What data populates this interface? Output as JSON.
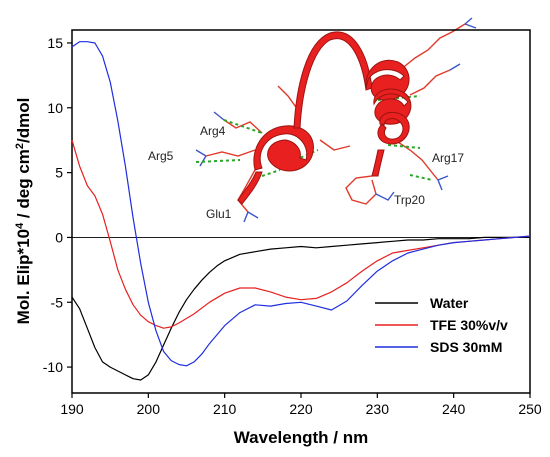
{
  "chart_data": {
    "type": "line",
    "xlabel": "Wavelength / nm",
    "ylabel_prefix": "Mol. Elip*10",
    "ylabel_exp": "4",
    "ylabel_mid": " / deg cm",
    "ylabel_exp2": "2",
    "ylabel_suffix": "/dmol",
    "xlim": [
      190,
      250
    ],
    "ylim": [
      -12,
      16
    ],
    "xticks": [
      190,
      200,
      210,
      220,
      230,
      240,
      250
    ],
    "yticks": [
      -10,
      -5,
      0,
      5,
      10,
      15
    ],
    "grid": false,
    "legend_position": "bottom-right",
    "zero_line_color": "#000000",
    "series": [
      {
        "name": "Water",
        "color": "#000000",
        "x": [
          190,
          191,
          192,
          193,
          194,
          195,
          196,
          197,
          198,
          199,
          200,
          201,
          202,
          203,
          204,
          205,
          206,
          207,
          208,
          209,
          210,
          212,
          214,
          216,
          218,
          220,
          222,
          224,
          226,
          228,
          230,
          232,
          234,
          236,
          238,
          240,
          242,
          244,
          246,
          248,
          250
        ],
        "y": [
          -4.6,
          -5.5,
          -7.0,
          -8.5,
          -9.6,
          -10.0,
          -10.3,
          -10.6,
          -10.9,
          -11.0,
          -10.6,
          -9.6,
          -8.3,
          -7.0,
          -5.8,
          -4.8,
          -4.0,
          -3.3,
          -2.7,
          -2.2,
          -1.8,
          -1.3,
          -1.1,
          -0.9,
          -0.8,
          -0.7,
          -0.8,
          -0.7,
          -0.6,
          -0.5,
          -0.4,
          -0.3,
          -0.2,
          -0.2,
          -0.1,
          -0.1,
          -0.1,
          0,
          0,
          0,
          0
        ]
      },
      {
        "name": "TFE 30%v/v",
        "color": "#e8201f",
        "x": [
          190,
          191,
          192,
          193,
          194,
          195,
          196,
          197,
          198,
          199,
          200,
          201,
          202,
          203,
          204,
          206,
          208,
          210,
          212,
          214,
          216,
          218,
          220,
          222,
          224,
          226,
          228,
          230,
          232,
          234,
          236,
          238,
          240,
          242,
          244,
          246,
          248,
          250
        ],
        "y": [
          7.5,
          5.5,
          4.0,
          3.2,
          1.8,
          -0.3,
          -2.5,
          -4.0,
          -5.2,
          -6.0,
          -6.5,
          -6.8,
          -7.0,
          -6.9,
          -6.6,
          -5.9,
          -5.0,
          -4.3,
          -3.9,
          -3.9,
          -4.2,
          -4.6,
          -4.8,
          -4.7,
          -4.2,
          -3.5,
          -2.6,
          -1.8,
          -1.2,
          -1.0,
          -0.8,
          -0.6,
          -0.4,
          -0.3,
          -0.2,
          -0.1,
          0,
          0.1
        ]
      },
      {
        "name": "SDS 30mM",
        "color": "#1f2ee0",
        "x": [
          190,
          191,
          192,
          193,
          194,
          195,
          196,
          197,
          198,
          199,
          200,
          201,
          202,
          203,
          204,
          205,
          206,
          207,
          208,
          209,
          210,
          212,
          214,
          216,
          218,
          220,
          222,
          224,
          226,
          228,
          230,
          232,
          234,
          236,
          238,
          240,
          242,
          244,
          246,
          248,
          250
        ],
        "y": [
          14.7,
          15.1,
          15.1,
          15.0,
          14.0,
          12.0,
          9.0,
          5.5,
          1.5,
          -2.0,
          -5.0,
          -7.2,
          -8.8,
          -9.5,
          -9.8,
          -9.9,
          -9.6,
          -9.0,
          -8.2,
          -7.5,
          -6.8,
          -5.8,
          -5.2,
          -5.3,
          -5.1,
          -5.0,
          -5.3,
          -5.6,
          -4.9,
          -3.7,
          -2.6,
          -1.8,
          -1.2,
          -0.9,
          -0.6,
          -0.4,
          -0.3,
          -0.2,
          -0.1,
          0,
          0.1
        ]
      }
    ]
  },
  "structure_inset": {
    "depicts": "helix-loop-helix peptide ribbon with labeled side chains",
    "ribbon_color": "#e8201f",
    "hbond_color": "#2aa52a",
    "labels": [
      "Arg4",
      "Arg5",
      "Glu1",
      "Arg17",
      "Trp20"
    ]
  }
}
